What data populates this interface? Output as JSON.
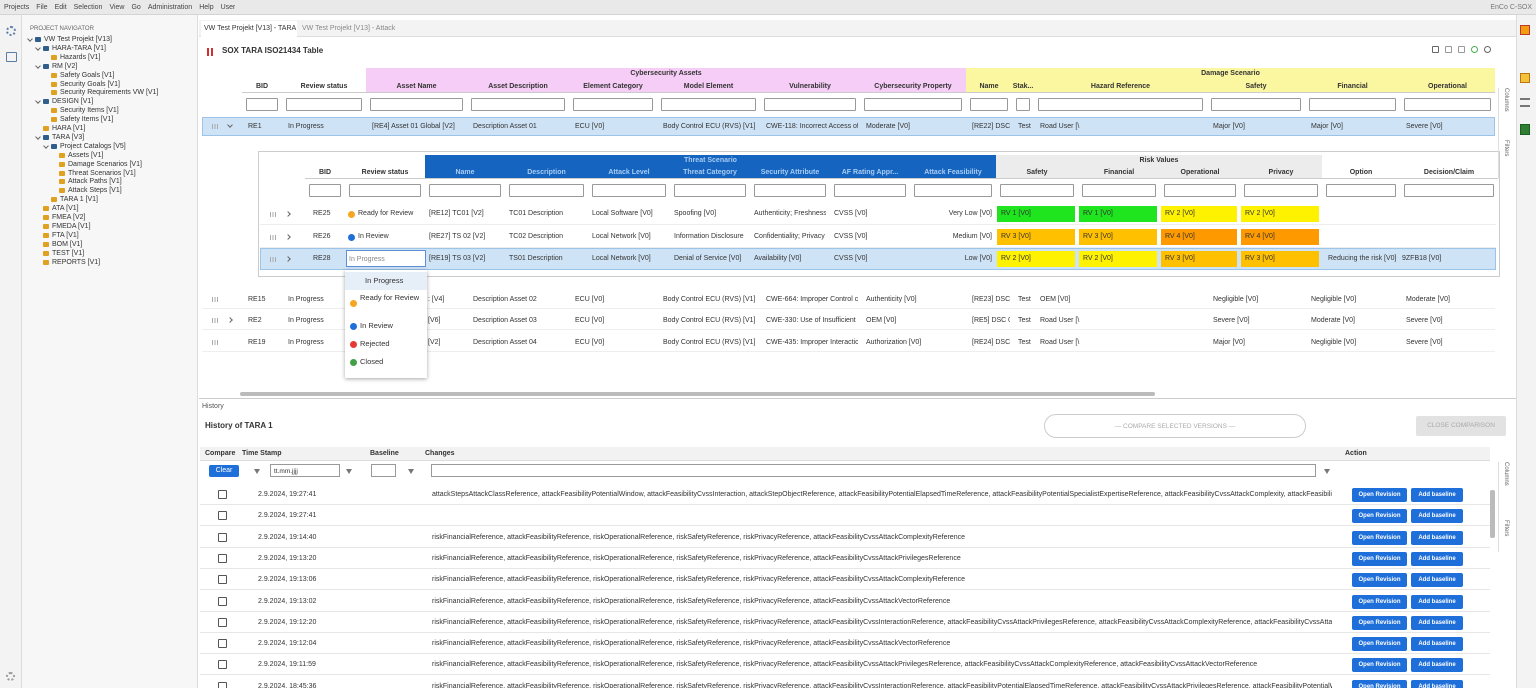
{
  "menu": [
    "Projects",
    "File",
    "Edit",
    "Selection",
    "View",
    "Go",
    "Administration",
    "Help",
    "User"
  ],
  "brand": "EnCo C-SOX",
  "navigator": {
    "title": "PROJECT NAVIGATOR",
    "tree": [
      {
        "label": "VW Test Projekt [V13]",
        "children": [
          {
            "label": "HARA-TARA [V1]",
            "children": [
              {
                "label": "Hazards [V1]"
              }
            ]
          },
          {
            "label": "RM [V2]",
            "children": [
              {
                "label": "Safety Goals [V1]"
              },
              {
                "label": "Security Goals [V1]"
              },
              {
                "label": "Security Requirements VW [V1]"
              }
            ]
          },
          {
            "label": "DESIGN [V1]",
            "children": [
              {
                "label": "Security Items [V1]"
              },
              {
                "label": "Safety Items [V1]"
              }
            ]
          },
          {
            "label": "HARA [V1]"
          },
          {
            "label": "TARA [V3]",
            "children": [
              {
                "label": "Project Catalogs [V5]",
                "children": [
                  {
                    "label": "Assets [V1]"
                  },
                  {
                    "label": "Damage Scenarios [V1]"
                  },
                  {
                    "label": "Threat Scenarios [V1]"
                  },
                  {
                    "label": "Attack Paths [V1]"
                  },
                  {
                    "label": "Attack Steps [V1]"
                  }
                ]
              },
              {
                "label": "TARA 1 [V1]"
              }
            ]
          },
          {
            "label": "ATA [V1]"
          },
          {
            "label": "FMEA [V2]"
          },
          {
            "label": "FMEDA [V1]"
          },
          {
            "label": "FTA [V1]"
          },
          {
            "label": "BOM [V1]"
          },
          {
            "label": "TEST [V1]"
          },
          {
            "label": "REPORTS [V1]"
          }
        ]
      }
    ]
  },
  "tabs": [
    "VW Test Projekt [V13] - TARA 1",
    "VW Test Projekt [V13] - Attack Steps"
  ],
  "editor_title": "SOX TARA ISO21434 Table",
  "side_labels": [
    "Columns",
    "Filters"
  ],
  "table": {
    "groups": [
      {
        "label": "Cybersecurity Assets",
        "color": "#f6cdf6",
        "text_color": "#333333",
        "first": 2,
        "last": 7
      },
      {
        "label": "Damage Scenario",
        "color": "#fbf6a0",
        "text_color": "#333333",
        "first": 8,
        "last": 13
      }
    ],
    "columns": [
      "BID",
      "Review status",
      "Asset Name",
      "Asset Description",
      "Element Category",
      "Model Element",
      "Vulnerability",
      "Cybersecurity Property",
      "Name",
      "Stak...",
      "Hazard Reference",
      "Safety",
      "Financial",
      "Operational"
    ],
    "rows": [
      {
        "bid": "RE1",
        "status": "In Progress",
        "cells": [
          "[RE4] Asset 01 Global [V2]",
          "Description Asset 01",
          "ECU [V0]",
          "Body Control ECU (RVS) [V1]",
          "CWE-118: Incorrect Access of",
          "Moderate [V0]",
          "[RE22] DSC I",
          "Test",
          "Road User [\\",
          "Major [V0]",
          "Major [V0]",
          "Severe [V0]"
        ]
      },
      {
        "bid": "RE15",
        "status": "In Progress",
        "cells": [
          ": [V4]",
          "Description Asset 02",
          "ECU [V0]",
          "Body Control ECU (RVS) [V1]",
          "CWE-664: Improper Control c",
          "Authenticity [V0]",
          "[RE23] DSC (",
          "Test",
          "OEM [V0]",
          "Negligible [V0]",
          "Negligible [V0]",
          "Moderate [V0]"
        ]
      },
      {
        "bid": "RE2",
        "status": "In Progress",
        "cells": [
          "[V6]",
          "Description Asset 03",
          "ECU [V0]",
          "Body Control ECU (RVS) [V1]",
          "CWE-330: Use of Insufficient",
          "OEM [V0]",
          "[RE5] DSC 0:",
          "Test",
          "Road User [\\",
          "Severe [V0]",
          "Moderate [V0]",
          "Severe [V0]"
        ]
      },
      {
        "bid": "RE19",
        "status": "In Progress",
        "cells": [
          "[V2]",
          "Description Asset 04",
          "ECU [V0]",
          "Body Control ECU (RVS) [V1]",
          "CWE-435: Improper Interactio",
          "Authorization [V0]",
          "[RE24] DSC I",
          "Test",
          "Road User [\\",
          "Major [V0]",
          "Negligible [V0]",
          "Severe [V0]"
        ]
      }
    ]
  },
  "subtable": {
    "groups": [
      {
        "label": "Threat Scenario",
        "color": "#1565c0",
        "text_color": "#a9ccf3",
        "first": 2,
        "last": 8
      },
      {
        "label": "Risk Values",
        "color": "#ececec",
        "text_color": "#333333",
        "first": 9,
        "last": 12
      }
    ],
    "columns": [
      "BID",
      "Review status",
      "Name",
      "Description",
      "Attack Level",
      "Threat Category",
      "Security Attribute",
      "AF Rating Appr...",
      "Attack Feasibility",
      "Safety",
      "Financial",
      "Operational",
      "Privacy",
      "Option",
      "Decision/Claim"
    ],
    "rows": [
      {
        "bid": "RE25",
        "status": "Ready for Review",
        "status_color": "#f5a623",
        "cells": [
          "[RE12] TC01 [V2]",
          "TC01 Description",
          "Local Software [V0]",
          "Spoofing [V0]",
          "Authenticity; Freshness",
          "CVSS [V0]",
          "Very Low [V0]"
        ],
        "risk": [
          {
            "label": "RV 1 [V0]",
            "color": "#1ee51e"
          },
          {
            "label": "RV 1 [V0]",
            "color": "#1ee51e"
          },
          {
            "label": "RV 2 [V0]",
            "color": "#fff200"
          },
          {
            "label": "RV 2 [V0]",
            "color": "#fff200"
          }
        ]
      },
      {
        "bid": "RE26",
        "status": "In Review",
        "status_color": "#1e6fd9",
        "cells": [
          "[RE27] TS 02 [V2]",
          "TC02 Description",
          "Local Network [V0]",
          "Information Disclosure",
          "Confidentiality; Privacy",
          "CVSS [V0]",
          "Medium [V0]"
        ],
        "risk": [
          {
            "label": "RV 3 [V0]",
            "color": "#ffc000"
          },
          {
            "label": "RV 3 [V0]",
            "color": "#ffc000"
          },
          {
            "label": "RV 4 [V0]",
            "color": "#ff9900"
          },
          {
            "label": "RV 4 [V0]",
            "color": "#ff9900"
          }
        ]
      },
      {
        "bid": "RE28",
        "cells": [
          "[RE19] TS 03 [V2]",
          "TS01 Description",
          "Local Network [V0]",
          "Denial of Service [V0]",
          "Availability [V0]",
          "CVSS [V0]",
          "Low [V0]"
        ],
        "risk": [
          {
            "label": "RV 2 [V0]",
            "color": "#fff200"
          },
          {
            "label": "RV 2 [V0]",
            "color": "#fff200"
          },
          {
            "label": "RV 3 [V0]",
            "color": "#ffc000"
          },
          {
            "label": "RV 3 [V0]",
            "color": "#ffc000"
          }
        ],
        "option": "Reducing the risk [V0]",
        "decision": "9ZFB18 [V0]"
      }
    ]
  },
  "status_menu": {
    "input": "In Progress",
    "options": [
      {
        "label": "In Progress"
      },
      {
        "label": "Ready for Review",
        "color": "#f5a623"
      },
      {
        "label": "In Review",
        "color": "#1e6fd9"
      },
      {
        "label": "Rejected",
        "color": "#e53935"
      },
      {
        "label": "Closed",
        "color": "#43a047"
      }
    ]
  },
  "history": {
    "tab": "History",
    "title": "History of TARA 1",
    "compare_button": "— COMPARE SELECTED VERSIONS —",
    "close_button": "CLOSE COMPARISON",
    "columns": [
      "Compare",
      "Time Stamp",
      "Baseline",
      "Changes",
      "Action"
    ],
    "clear_button": "Clear",
    "date_placeholder": "tt.mm.jjjj",
    "open_label": "Open Revision",
    "baseline_label": "Add baseline",
    "rows": [
      {
        "time": "2.9.2024, 19:27:41",
        "changes": "attackStepsAttackClassReference, attackFeasibilityPotentialWindow, attackFeasibilityCvssInteraction, attackStepObjectReference, attackFeasibilityPotentialElapsedTimeReference, attackFeasibilityPotentialSpecialistExpertiseReference, attackFeasibilityCvssAttackComplexity, attackFeasibilityPote..."
      },
      {
        "time": "2.9.2024, 19:27:41"
      },
      {
        "time": "2.9.2024, 19:14:40",
        "changes": "riskFinancialReference, attackFeasibilityReference, riskOperationalReference, riskSafetyReference, riskPrivacyReference, attackFeasibilityCvssAttackComplexityReference"
      },
      {
        "time": "2.9.2024, 19:13:20",
        "changes": "riskFinancialReference, attackFeasibilityReference, riskOperationalReference, riskSafetyReference, riskPrivacyReference, attackFeasibilityCvssAttackPrivilegesReference"
      },
      {
        "time": "2.9.2024, 19:13:06",
        "changes": "riskFinancialReference, attackFeasibilityReference, riskOperationalReference, riskSafetyReference, riskPrivacyReference, attackFeasibilityCvssAttackComplexityReference"
      },
      {
        "time": "2.9.2024, 19:13:02",
        "changes": "riskFinancialReference, attackFeasibilityReference, riskOperationalReference, riskSafetyReference, riskPrivacyReference, attackFeasibilityCvssAttackVectorReference"
      },
      {
        "time": "2.9.2024, 19:12:20",
        "changes": "riskFinancialReference, attackFeasibilityReference, riskOperationalReference, riskSafetyReference, riskPrivacyReference, attackFeasibilityCvssInteractionReference, attackFeasibilityCvssAttackPrivilegesReference, attackFeasibilityCvssAttackComplexityReference, attackFeasibilityCvssAttackVector..."
      },
      {
        "time": "2.9.2024, 19:12:04",
        "changes": "riskFinancialReference, attackFeasibilityReference, riskOperationalReference, riskSafetyReference, riskPrivacyReference, attackFeasibilityCvssAttackVectorReference"
      },
      {
        "time": "2.9.2024, 19:11:59",
        "changes": "riskFinancialReference, attackFeasibilityReference, riskOperationalReference, riskSafetyReference, riskPrivacyReference, attackFeasibilityCvssAttackPrivilegesReference, attackFeasibilityCvssAttackComplexityReference, attackFeasibilityCvssAttackVectorReference"
      },
      {
        "time": "2.9.2024, 18:45:36",
        "changes": "riskFinancialReference, attackFeasibilityReference, riskOperationalReference, riskSafetyReference, riskPrivacyReference, attackFeasibilityCvssInteractionReference, attackFeasibilityPotentialElapsedTimeReference, attackFeasibilityCvssAttackPrivilegesReference, attackFeasibilityPotentialWindowR..."
      }
    ]
  }
}
